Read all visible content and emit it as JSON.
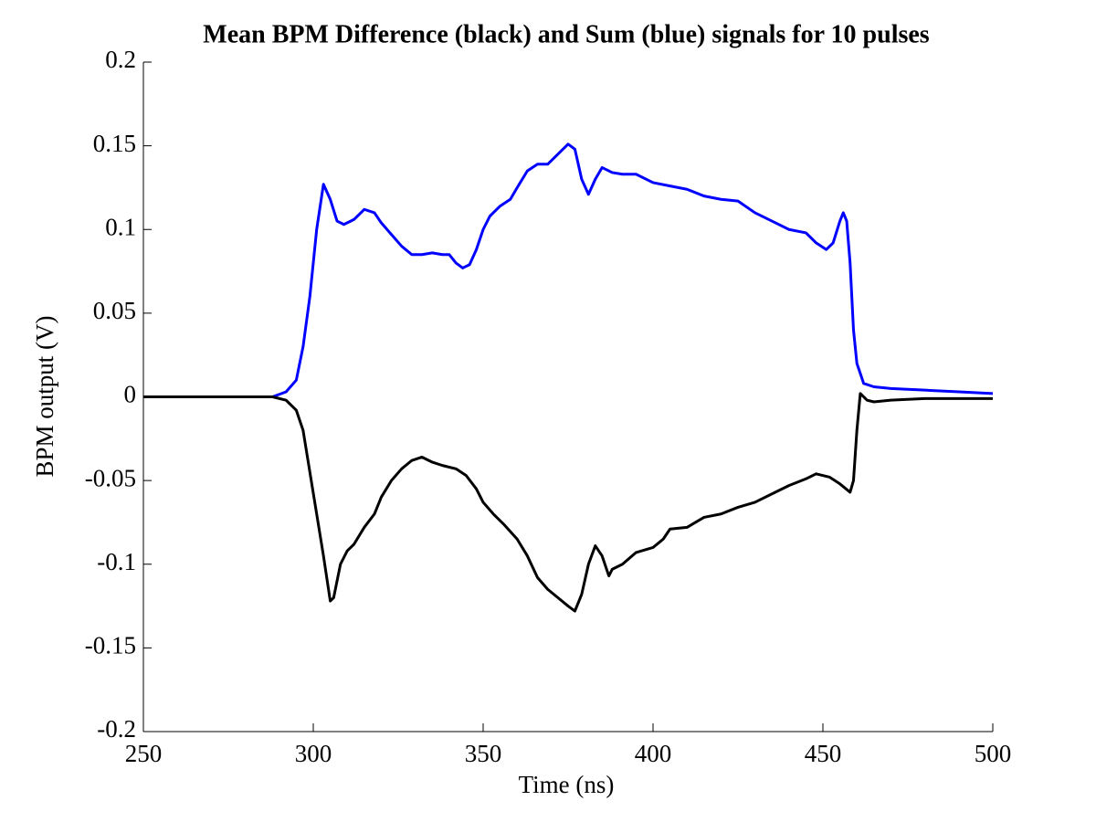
{
  "chart_data": {
    "type": "line",
    "title": "Mean BPM Difference (black) and Sum (blue) signals for 10 pulses",
    "x_label": "Time (ns)",
    "y_label": "BPM output (V)",
    "xlim": [
      250,
      500
    ],
    "xticks": [
      250,
      300,
      350,
      400,
      450,
      500
    ],
    "ylim": [
      -0.2,
      0.2
    ],
    "yticks": [
      -0.2,
      -0.15,
      -0.1,
      -0.05,
      0,
      0.05,
      0.1,
      0.15,
      0.2
    ],
    "grid": false,
    "series": [
      {
        "color": "#0000ff",
        "x": [
          250,
          260,
          270,
          280,
          288,
          292,
          295,
          297,
          299,
          301,
          303,
          305,
          307,
          309,
          312,
          315,
          318,
          320,
          323,
          326,
          329,
          332,
          335,
          338,
          340,
          342,
          344,
          346,
          348,
          350,
          352,
          355,
          358,
          360,
          363,
          366,
          369,
          372,
          375,
          377,
          379,
          381,
          383,
          385,
          388,
          391,
          395,
          400,
          405,
          410,
          415,
          420,
          425,
          430,
          435,
          440,
          445,
          448,
          451,
          453,
          455,
          456,
          457,
          458,
          459,
          460,
          462,
          465,
          470,
          480,
          490,
          500
        ],
        "values": [
          0,
          0,
          0,
          0,
          0,
          0.003,
          0.01,
          0.03,
          0.06,
          0.1,
          0.127,
          0.118,
          0.105,
          0.103,
          0.106,
          0.112,
          0.11,
          0.104,
          0.097,
          0.09,
          0.085,
          0.085,
          0.086,
          0.085,
          0.085,
          0.08,
          0.077,
          0.079,
          0.088,
          0.1,
          0.108,
          0.114,
          0.118,
          0.125,
          0.135,
          0.139,
          0.139,
          0.145,
          0.151,
          0.148,
          0.13,
          0.121,
          0.13,
          0.137,
          0.134,
          0.133,
          0.133,
          0.128,
          0.126,
          0.124,
          0.12,
          0.118,
          0.117,
          0.11,
          0.105,
          0.1,
          0.098,
          0.092,
          0.088,
          0.092,
          0.105,
          0.11,
          0.105,
          0.08,
          0.04,
          0.02,
          0.008,
          0.006,
          0.005,
          0.004,
          0.003,
          0.002
        ]
      },
      {
        "color": "#000000",
        "x": [
          250,
          260,
          270,
          280,
          288,
          292,
          295,
          297,
          299,
          301,
          303,
          305,
          306,
          308,
          310,
          312,
          315,
          318,
          320,
          323,
          326,
          329,
          332,
          335,
          338,
          342,
          345,
          348,
          350,
          353,
          356,
          360,
          363,
          366,
          369,
          372,
          375,
          377,
          379,
          381,
          383,
          385,
          387,
          388,
          391,
          395,
          400,
          403,
          405,
          410,
          415,
          420,
          425,
          430,
          435,
          440,
          445,
          448,
          452,
          455,
          458,
          459,
          460,
          461,
          463,
          465,
          470,
          480,
          490,
          500
        ],
        "values": [
          0,
          0,
          0,
          0,
          0,
          -0.002,
          -0.008,
          -0.02,
          -0.045,
          -0.07,
          -0.095,
          -0.122,
          -0.12,
          -0.1,
          -0.092,
          -0.088,
          -0.078,
          -0.07,
          -0.06,
          -0.05,
          -0.043,
          -0.038,
          -0.036,
          -0.039,
          -0.041,
          -0.043,
          -0.047,
          -0.055,
          -0.063,
          -0.07,
          -0.076,
          -0.085,
          -0.095,
          -0.108,
          -0.115,
          -0.12,
          -0.125,
          -0.128,
          -0.118,
          -0.1,
          -0.089,
          -0.095,
          -0.107,
          -0.103,
          -0.1,
          -0.093,
          -0.09,
          -0.085,
          -0.079,
          -0.078,
          -0.072,
          -0.07,
          -0.066,
          -0.063,
          -0.058,
          -0.053,
          -0.049,
          -0.046,
          -0.048,
          -0.052,
          -0.057,
          -0.05,
          -0.02,
          0.002,
          -0.002,
          -0.003,
          -0.002,
          -0.001,
          -0.001,
          -0.001
        ]
      }
    ]
  }
}
